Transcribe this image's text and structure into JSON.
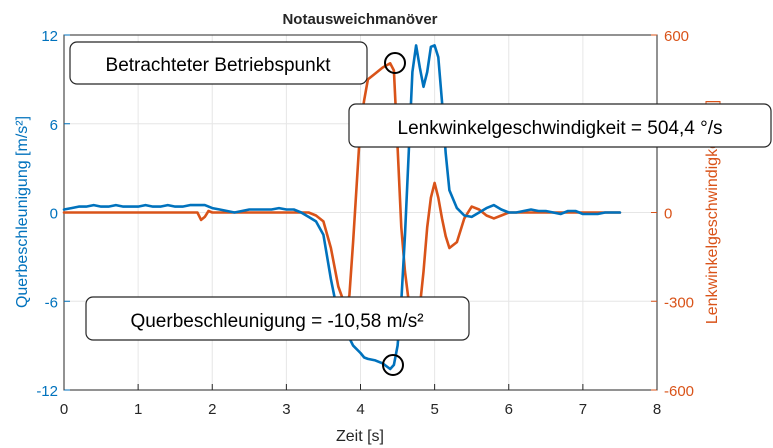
{
  "chart_data": {
    "type": "line",
    "title": "Notausweichmanöver",
    "xlabel": "Zeit [s]",
    "ylabel_left": "Querbeschleunigung [m/s²]",
    "ylabel_right": "Lenkwinkelgeschwindigkeit [°/s]",
    "xlim": [
      0,
      8
    ],
    "ylim_left": [
      -12,
      12
    ],
    "ylim_right": [
      -600,
      600
    ],
    "x_ticks": [
      "0",
      "1",
      "2",
      "3",
      "4",
      "5",
      "6",
      "7",
      "8"
    ],
    "y_ticks_left": [
      "12",
      "6",
      "0",
      "-6",
      "-12"
    ],
    "y_ticks_right": [
      "600",
      "300",
      "0",
      "-300",
      "-600"
    ],
    "grid": true,
    "colors": {
      "left": "#0072BD",
      "right": "#D95319"
    },
    "series": [
      {
        "name": "Querbeschleunigung",
        "axis": "left",
        "x": [
          0,
          0.1,
          0.2,
          0.3,
          0.4,
          0.5,
          0.6,
          0.7,
          0.8,
          0.9,
          1.0,
          1.1,
          1.2,
          1.3,
          1.4,
          1.5,
          1.6,
          1.7,
          1.8,
          1.9,
          2.0,
          2.1,
          2.2,
          2.3,
          2.4,
          2.5,
          2.6,
          2.7,
          2.8,
          2.9,
          3.0,
          3.1,
          3.2,
          3.3,
          3.4,
          3.5,
          3.6,
          3.7,
          3.8,
          3.85,
          3.9,
          4.0,
          4.05,
          4.1,
          4.2,
          4.3,
          4.4,
          4.45,
          4.5,
          4.55,
          4.6,
          4.65,
          4.7,
          4.75,
          4.8,
          4.85,
          4.9,
          4.95,
          5.0,
          5.05,
          5.1,
          5.15,
          5.2,
          5.3,
          5.4,
          5.5,
          5.6,
          5.7,
          5.8,
          5.9,
          6.0,
          6.1,
          6.2,
          6.3,
          6.4,
          6.5,
          6.6,
          6.7,
          6.8,
          6.9,
          7.0,
          7.1,
          7.2,
          7.3,
          7.4,
          7.5
        ],
        "values": [
          0.2,
          0.3,
          0.4,
          0.4,
          0.5,
          0.4,
          0.4,
          0.5,
          0.4,
          0.4,
          0.4,
          0.5,
          0.4,
          0.4,
          0.5,
          0.4,
          0.4,
          0.5,
          0.5,
          0.5,
          0.3,
          0.2,
          0.1,
          0.0,
          0.1,
          0.2,
          0.2,
          0.2,
          0.2,
          0.3,
          0.2,
          0.2,
          0.0,
          -0.3,
          -0.6,
          -1.5,
          -4.5,
          -7.0,
          -8.0,
          -8.5,
          -9.0,
          -9.5,
          -9.8,
          -9.9,
          -10.0,
          -10.2,
          -10.58,
          -10.3,
          -9.0,
          -6.0,
          -1.5,
          4.0,
          9.5,
          11.3,
          9.8,
          8.5,
          9.5,
          11.2,
          11.3,
          10.5,
          7.5,
          4.0,
          1.5,
          0.3,
          -0.2,
          -0.3,
          0.0,
          0.3,
          0.5,
          0.2,
          0.0,
          0.0,
          0.1,
          0.2,
          0.1,
          0.1,
          0.0,
          -0.1,
          0.1,
          0.1,
          -0.1,
          -0.1,
          -0.1,
          0.0,
          0.0,
          0.0
        ]
      },
      {
        "name": "Lenkwinkelgeschwindigkeit",
        "axis": "right",
        "x": [
          0,
          0.5,
          1.0,
          1.5,
          1.8,
          1.85,
          1.9,
          1.95,
          2.0,
          2.5,
          3.0,
          3.2,
          3.3,
          3.4,
          3.5,
          3.6,
          3.7,
          3.8,
          3.85,
          3.9,
          3.95,
          4.0,
          4.05,
          4.1,
          4.2,
          4.3,
          4.4,
          4.45,
          4.5,
          4.55,
          4.6,
          4.65,
          4.7,
          4.75,
          4.8,
          4.85,
          4.9,
          4.95,
          5.0,
          5.05,
          5.1,
          5.15,
          5.2,
          5.3,
          5.4,
          5.5,
          5.6,
          5.7,
          5.8,
          5.9,
          6.0,
          6.2,
          6.5,
          7.0,
          7.5
        ],
        "values": [
          0,
          0,
          0,
          0,
          0,
          -25,
          -15,
          5,
          0,
          0,
          0,
          0,
          0,
          -10,
          -30,
          -120,
          -250,
          -320,
          -280,
          -100,
          100,
          300,
          380,
          450,
          470,
          490,
          504.4,
          480,
          220,
          -50,
          -200,
          -300,
          -350,
          -380,
          -320,
          -200,
          -50,
          50,
          100,
          50,
          -20,
          -80,
          -120,
          -100,
          -20,
          20,
          10,
          -10,
          -20,
          -10,
          0,
          0,
          0,
          0,
          0
        ]
      }
    ],
    "annotations": [
      {
        "text": "Betrachteter Betriebspunkt",
        "x": 4.45,
        "y": 504.4,
        "axis": "right"
      },
      {
        "text": "Lenkwinkelgeschwindigkeit = 504,4 °/s",
        "x": 4.45,
        "y": 504.4,
        "axis": "right"
      },
      {
        "text": "Querbeschleunigung = -10,58 m/s²",
        "x": 4.45,
        "y": -10.58,
        "axis": "left"
      }
    ]
  }
}
